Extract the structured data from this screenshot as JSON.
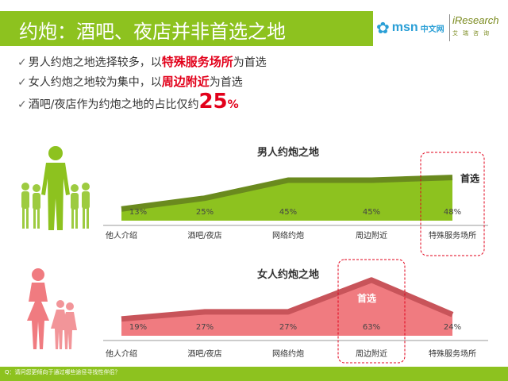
{
  "title": "约炮：酒吧、夜店并非首选之地",
  "logos": {
    "msn": "msn",
    "msn_cn": "中文网",
    "iresearch": "iResearch",
    "iresearch_sub": "艾瑞咨询"
  },
  "bullets": [
    {
      "before": "男人约炮之地选择较多，以",
      "highlight": "特殊服务场所",
      "after": "为首选"
    },
    {
      "before": "女人约炮之地较为集中，以",
      "highlight": "周边附近",
      "after": "为首选"
    },
    {
      "before": "酒吧/夜店作为约炮之地的占比仅约",
      "big": "25",
      "pct": "%"
    }
  ],
  "footer": "Q：请问您更倾向于通过哪些途径寻找性伴侣？",
  "colors": {
    "male": "#8dc21f",
    "male_dark": "#6a8a1e",
    "female": "#f07b80",
    "female_dark": "#c8545a",
    "accent": "#e2001a"
  },
  "chart_data": [
    {
      "type": "area",
      "title": "男人约炮之地",
      "categories": [
        "他人介绍",
        "酒吧/夜店",
        "网络约炮",
        "周边附近",
        "特殊服务场所"
      ],
      "values": [
        13,
        25,
        45,
        45,
        48
      ],
      "data_labels": [
        "13%",
        "25%",
        "45%",
        "45%",
        "48%"
      ],
      "highlight_index": 4,
      "highlight_label": "首选",
      "ylim": [
        0,
        60
      ]
    },
    {
      "type": "area",
      "title": "女人约炮之地",
      "categories": [
        "他人介绍",
        "酒吧/夜店",
        "网络约炮",
        "周边附近",
        "特殊服务场所"
      ],
      "values": [
        19,
        27,
        27,
        63,
        24
      ],
      "data_labels": [
        "19%",
        "27%",
        "27%",
        "63%",
        "24%"
      ],
      "highlight_index": 3,
      "highlight_label": "首选",
      "ylim": [
        0,
        70
      ]
    }
  ]
}
